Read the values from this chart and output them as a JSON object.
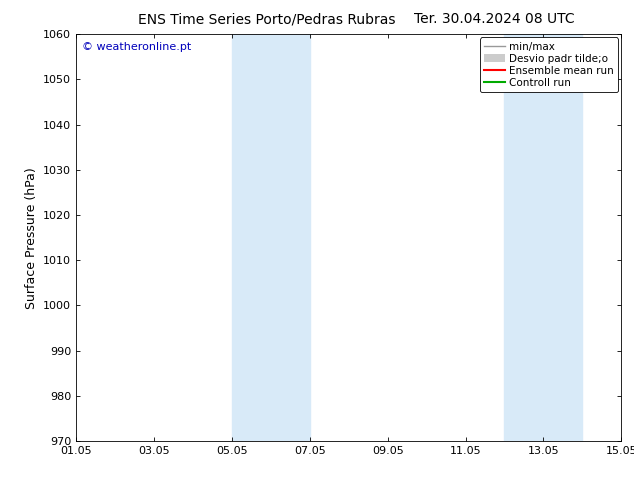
{
  "title_left": "ENS Time Series Porto/Pedras Rubras",
  "title_right": "Ter. 30.04.2024 08 UTC",
  "ylabel": "Surface Pressure (hPa)",
  "ylim": [
    970,
    1060
  ],
  "yticks": [
    970,
    980,
    990,
    1000,
    1010,
    1020,
    1030,
    1040,
    1050,
    1060
  ],
  "x_min": 0,
  "x_max": 14,
  "xtick_labels": [
    "01.05",
    "03.05",
    "05.05",
    "07.05",
    "09.05",
    "11.05",
    "13.05",
    "15.05"
  ],
  "xtick_positions": [
    0,
    2,
    4,
    6,
    8,
    10,
    12,
    14
  ],
  "shaded_regions": [
    {
      "start": 4,
      "end": 6,
      "color": "#d8eaf8"
    },
    {
      "start": 11,
      "end": 13,
      "color": "#d8eaf8"
    }
  ],
  "watermark": "© weatheronline.pt",
  "watermark_color": "#0000bb",
  "legend_entries": [
    {
      "label": "min/max",
      "color": "#999999",
      "lw": 1.0,
      "type": "line"
    },
    {
      "label": "Desvio padr tilde;o",
      "color": "#cccccc",
      "lw": 5,
      "type": "patch"
    },
    {
      "label": "Ensemble mean run",
      "color": "#ff0000",
      "lw": 1.5,
      "type": "line"
    },
    {
      "label": "Controll run",
      "color": "#00aa00",
      "lw": 1.5,
      "type": "line"
    }
  ],
  "bg_color": "#ffffff",
  "axes_bg_color": "#ffffff",
  "title_fontsize": 10,
  "label_fontsize": 9,
  "tick_fontsize": 8,
  "legend_fontsize": 7.5
}
